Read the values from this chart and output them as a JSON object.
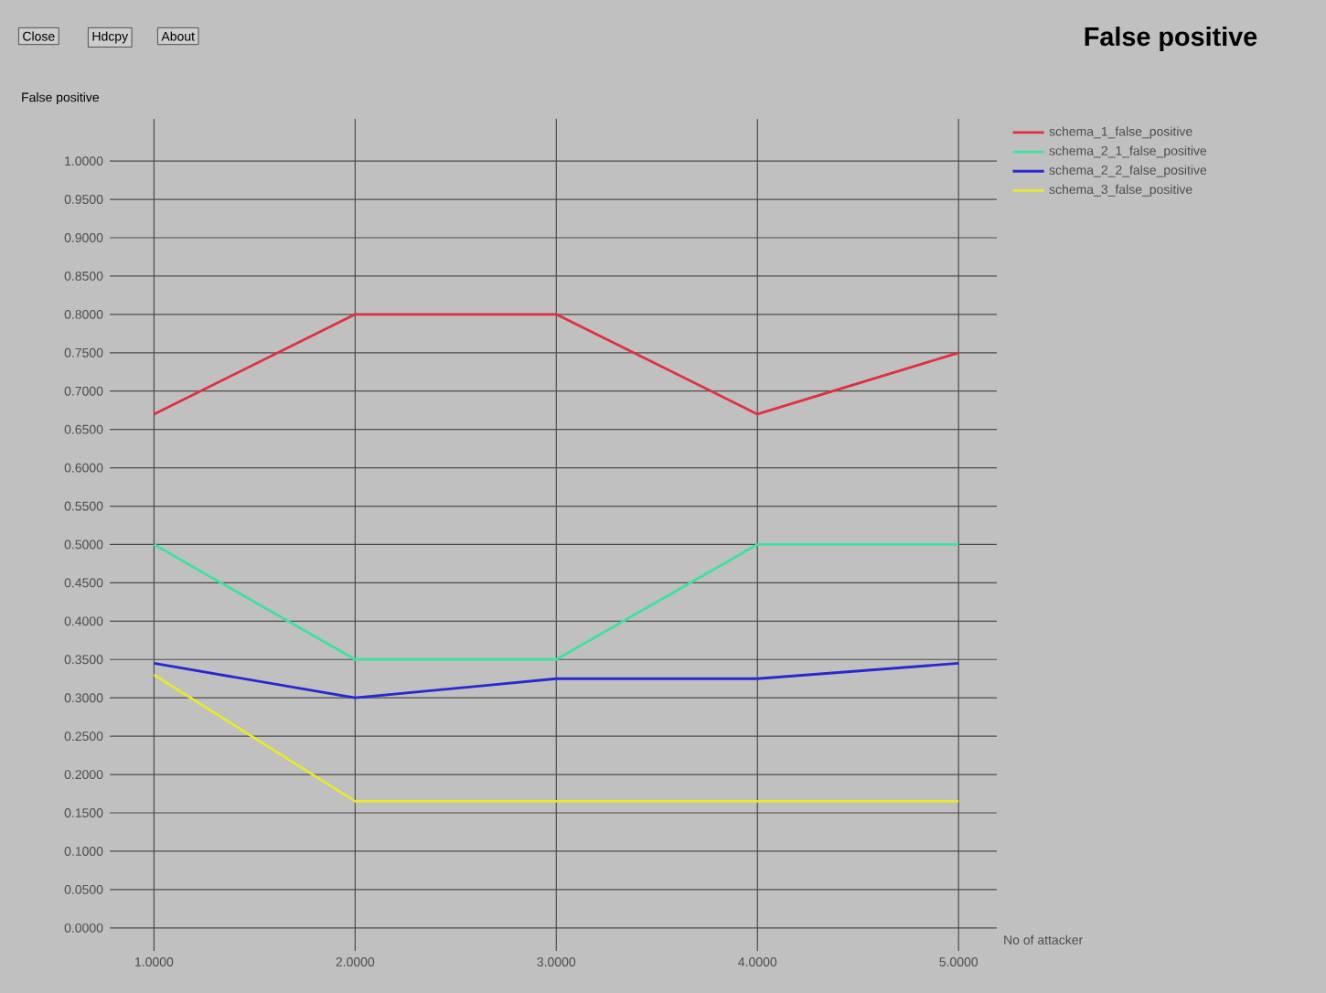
{
  "chart_data": {
    "type": "line",
    "title": "False positive",
    "ylabel": "False positive",
    "xlabel": "No of attacker",
    "annotations": [
      "Close",
      "Hdcpy",
      "About"
    ],
    "x": [
      1,
      2,
      3,
      4,
      5
    ],
    "series": [
      {
        "name": "schema_1_false_positive",
        "color": "#e03040",
        "values": [
          0.67,
          0.8,
          0.8,
          0.67,
          0.75
        ]
      },
      {
        "name": "schema_2_1_false_positive",
        "color": "#40e0a0",
        "values": [
          0.5,
          0.35,
          0.35,
          0.5,
          0.5
        ]
      },
      {
        "name": "schema_2_2_false_positive",
        "color": "#2828d0",
        "values": [
          0.345,
          0.3,
          0.325,
          0.325,
          0.345
        ]
      },
      {
        "name": "schema_3_false_positive",
        "color": "#e8e830",
        "values": [
          0.33,
          0.165,
          0.165,
          0.165,
          0.165
        ]
      }
    ],
    "xlim": [
      0.78,
      5.19
    ],
    "ylim": [
      -0.03,
      1.055
    ],
    "xticks": [
      {
        "value": 1,
        "label": "1.0000"
      },
      {
        "value": 2,
        "label": "2.0000"
      },
      {
        "value": 3,
        "label": "3.0000"
      },
      {
        "value": 4,
        "label": "4.0000"
      },
      {
        "value": 5,
        "label": "5.0000"
      }
    ],
    "yticks": [
      {
        "value": 0,
        "label": "0.0000"
      },
      {
        "value": 0.05,
        "label": "0.0500"
      },
      {
        "value": 0.1,
        "label": "0.1000"
      },
      {
        "value": 0.15,
        "label": "0.1500"
      },
      {
        "value": 0.2,
        "label": "0.2000"
      },
      {
        "value": 0.25,
        "label": "0.2500"
      },
      {
        "value": 0.3,
        "label": "0.3000"
      },
      {
        "value": 0.35,
        "label": "0.3500"
      },
      {
        "value": 0.4,
        "label": "0.4000"
      },
      {
        "value": 0.45,
        "label": "0.4500"
      },
      {
        "value": 0.5,
        "label": "0.5000"
      },
      {
        "value": 0.55,
        "label": "0.5500"
      },
      {
        "value": 0.6,
        "label": "0.6000"
      },
      {
        "value": 0.65,
        "label": "0.6500"
      },
      {
        "value": 0.7,
        "label": "0.7000"
      },
      {
        "value": 0.75,
        "label": "0.7500"
      },
      {
        "value": 0.8,
        "label": "0.8000"
      },
      {
        "value": 0.85,
        "label": "0.8500"
      },
      {
        "value": 0.9,
        "label": "0.9000"
      },
      {
        "value": 0.95,
        "label": "0.9500"
      },
      {
        "value": 1.0,
        "label": "1.0000"
      }
    ],
    "grid": true,
    "legend": "top right",
    "marker": "none",
    "line_style": "solid"
  }
}
